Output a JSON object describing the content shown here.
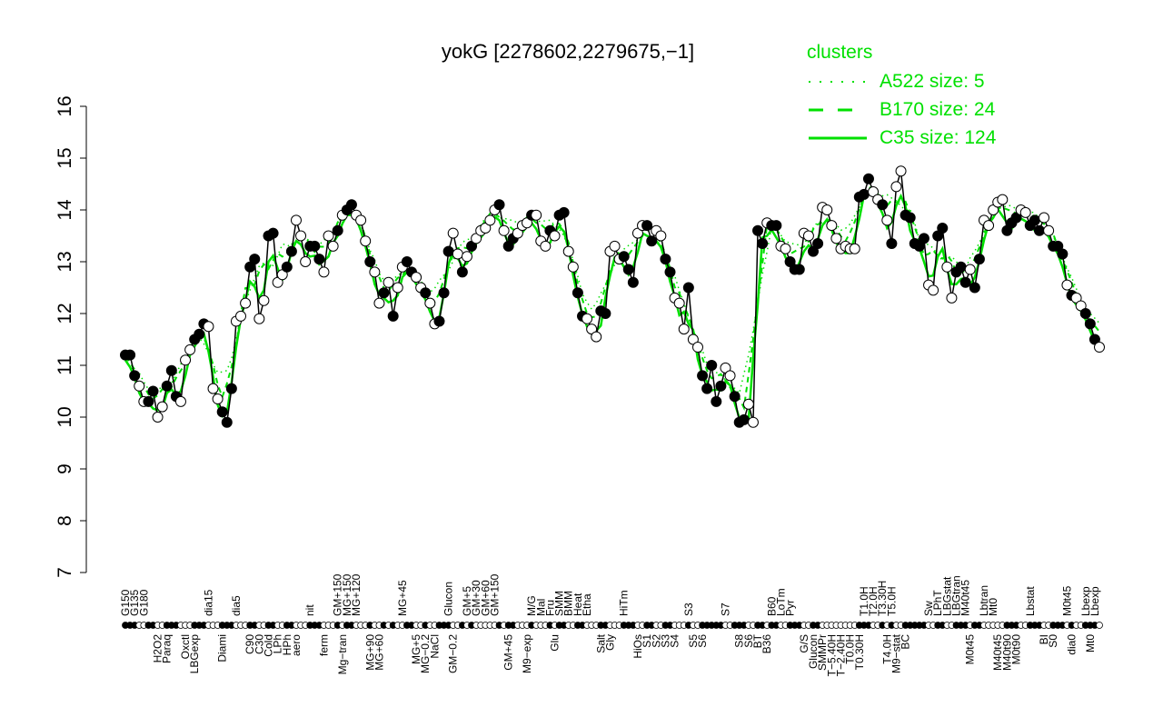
{
  "chart_data": {
    "type": "line",
    "title": "yokG [2278602,2279675,−1]",
    "xlabel": "",
    "ylabel": "",
    "ylim": [
      7,
      16
    ],
    "yticks": [
      7,
      8,
      9,
      10,
      11,
      12,
      13,
      14,
      15,
      16
    ],
    "legend": {
      "title": "clusters",
      "placement": "top-right",
      "entries": [
        {
          "label": "A522 size: 5",
          "style": "dotted"
        },
        {
          "label": "B170 size: 24",
          "style": "dashed"
        },
        {
          "label": "C35 size: 124",
          "style": "solid"
        }
      ]
    },
    "colors": {
      "points": "#000000",
      "clusters": "#00e000"
    },
    "points": [
      [
        11.2,
        1,
        "G150"
      ],
      [
        11.2,
        1,
        ""
      ],
      [
        10.8,
        1,
        "G135"
      ],
      [
        10.6,
        0,
        ""
      ],
      [
        10.3,
        0,
        "G180"
      ],
      [
        10.3,
        1,
        ""
      ],
      [
        10.5,
        1,
        ""
      ],
      [
        10.0,
        0,
        "H2O2"
      ],
      [
        10.2,
        0,
        ""
      ],
      [
        10.6,
        1,
        "Paraq"
      ],
      [
        10.9,
        1,
        ""
      ],
      [
        10.4,
        1,
        ""
      ],
      [
        10.3,
        0,
        ""
      ],
      [
        11.1,
        0,
        "Oxctl"
      ],
      [
        11.3,
        0,
        ""
      ],
      [
        11.5,
        1,
        "LBGexp"
      ],
      [
        11.6,
        1,
        ""
      ],
      [
        11.8,
        1,
        ""
      ],
      [
        11.75,
        0,
        "dia15"
      ],
      [
        10.55,
        0,
        ""
      ],
      [
        10.35,
        0,
        ""
      ],
      [
        10.1,
        1,
        "Diami"
      ],
      [
        9.9,
        1,
        ""
      ],
      [
        10.55,
        1,
        ""
      ],
      [
        11.85,
        0,
        "dia5"
      ],
      [
        11.95,
        0,
        ""
      ],
      [
        12.2,
        0,
        ""
      ],
      [
        12.9,
        1,
        "C90"
      ],
      [
        13.05,
        1,
        ""
      ],
      [
        11.9,
        0,
        "C30"
      ],
      [
        12.25,
        0,
        ""
      ],
      [
        13.5,
        1,
        "Cold"
      ],
      [
        13.55,
        1,
        ""
      ],
      [
        12.6,
        0,
        "LPh"
      ],
      [
        12.75,
        0,
        ""
      ],
      [
        12.9,
        1,
        "HPh"
      ],
      [
        13.2,
        1,
        ""
      ],
      [
        13.8,
        0,
        "aero"
      ],
      [
        13.5,
        0,
        ""
      ],
      [
        13.0,
        0,
        ""
      ],
      [
        13.3,
        1,
        "nit"
      ],
      [
        13.3,
        1,
        ""
      ],
      [
        13.05,
        1,
        ""
      ],
      [
        12.8,
        0,
        "ferm"
      ],
      [
        13.5,
        0,
        ""
      ],
      [
        13.3,
        0,
        ""
      ],
      [
        13.6,
        1,
        "GM+150"
      ],
      [
        13.9,
        0,
        "Mg−tran"
      ],
      [
        14.0,
        1,
        "MG+150"
      ],
      [
        14.1,
        1,
        ""
      ],
      [
        13.9,
        0,
        "MG+120"
      ],
      [
        13.8,
        0,
        ""
      ],
      [
        13.4,
        0,
        ""
      ],
      [
        13.0,
        1,
        "MG+90"
      ],
      [
        12.8,
        0,
        ""
      ],
      [
        12.2,
        0,
        "MG+60"
      ],
      [
        12.4,
        1,
        ""
      ],
      [
        12.6,
        0,
        ""
      ],
      [
        11.95,
        1,
        ""
      ],
      [
        12.5,
        0,
        ""
      ],
      [
        12.9,
        0,
        "MG+45"
      ],
      [
        13.0,
        1,
        ""
      ],
      [
        12.8,
        1,
        ""
      ],
      [
        12.7,
        0,
        "MG+5"
      ],
      [
        12.5,
        0,
        ""
      ],
      [
        12.4,
        1,
        "MG−0.2"
      ],
      [
        12.2,
        0,
        ""
      ],
      [
        11.8,
        0,
        "NaCl"
      ],
      [
        11.85,
        1,
        ""
      ],
      [
        12.4,
        1,
        ""
      ],
      [
        13.2,
        1,
        "Glucon"
      ],
      [
        13.55,
        0,
        "GM−0.2"
      ],
      [
        13.15,
        0,
        ""
      ],
      [
        12.8,
        1,
        ""
      ],
      [
        13.1,
        0,
        "GM+5"
      ],
      [
        13.3,
        1,
        ""
      ],
      [
        13.45,
        0,
        "GM+30"
      ],
      [
        13.6,
        0,
        ""
      ],
      [
        13.65,
        0,
        "GM+60"
      ],
      [
        13.8,
        0,
        ""
      ],
      [
        14.0,
        0,
        "GM+150"
      ],
      [
        14.1,
        1,
        ""
      ],
      [
        13.6,
        0,
        ""
      ],
      [
        13.3,
        1,
        "GM+45"
      ],
      [
        13.45,
        1,
        ""
      ],
      [
        13.55,
        0,
        ""
      ],
      [
        13.7,
        0,
        ""
      ],
      [
        13.75,
        0,
        "M9−exp"
      ],
      [
        13.9,
        1,
        "M/G"
      ],
      [
        13.9,
        0,
        ""
      ],
      [
        13.4,
        0,
        "Mal"
      ],
      [
        13.3,
        0,
        ""
      ],
      [
        13.6,
        1,
        "Fru"
      ],
      [
        13.5,
        0,
        "Glu"
      ],
      [
        13.9,
        1,
        "SMM"
      ],
      [
        13.95,
        1,
        ""
      ],
      [
        13.2,
        0,
        "BMM"
      ],
      [
        12.9,
        0,
        ""
      ],
      [
        12.4,
        1,
        "Heat"
      ],
      [
        11.95,
        1,
        ""
      ],
      [
        11.9,
        0,
        "Etha"
      ],
      [
        11.7,
        0,
        ""
      ],
      [
        11.55,
        0,
        ""
      ],
      [
        12.05,
        1,
        "Salt"
      ],
      [
        12.0,
        1,
        ""
      ],
      [
        13.2,
        0,
        "Gly"
      ],
      [
        13.3,
        0,
        ""
      ],
      [
        13.05,
        0,
        ""
      ],
      [
        13.1,
        1,
        "HiTm"
      ],
      [
        12.85,
        1,
        ""
      ],
      [
        12.6,
        1,
        ""
      ],
      [
        13.55,
        0,
        "HiOs"
      ],
      [
        13.7,
        0,
        ""
      ],
      [
        13.7,
        1,
        "S1"
      ],
      [
        13.4,
        1,
        ""
      ],
      [
        13.6,
        0,
        "S2"
      ],
      [
        13.5,
        0,
        ""
      ],
      [
        13.05,
        1,
        "S3"
      ],
      [
        12.8,
        1,
        ""
      ],
      [
        12.3,
        0,
        "S4"
      ],
      [
        12.2,
        0,
        ""
      ],
      [
        11.7,
        0,
        ""
      ],
      [
        12.5,
        1,
        "S3"
      ],
      [
        11.5,
        0,
        "S5"
      ],
      [
        11.35,
        0,
        ""
      ],
      [
        10.8,
        1,
        "S6"
      ],
      [
        10.55,
        1,
        ""
      ],
      [
        11.0,
        1,
        ""
      ],
      [
        10.3,
        1,
        ""
      ],
      [
        10.6,
        1,
        ""
      ],
      [
        10.95,
        0,
        "S7"
      ],
      [
        10.8,
        0,
        ""
      ],
      [
        10.4,
        1,
        ""
      ],
      [
        9.9,
        1,
        "S8"
      ],
      [
        9.95,
        1,
        ""
      ],
      [
        10.25,
        0,
        "S6"
      ],
      [
        9.9,
        0,
        ""
      ],
      [
        13.6,
        1,
        "BT"
      ],
      [
        13.35,
        1,
        ""
      ],
      [
        13.75,
        0,
        "B36"
      ],
      [
        13.7,
        1,
        "B60"
      ],
      [
        13.7,
        1,
        ""
      ],
      [
        13.3,
        0,
        "LoTm"
      ],
      [
        13.25,
        0,
        ""
      ],
      [
        13.0,
        1,
        "Pyr"
      ],
      [
        12.85,
        1,
        ""
      ],
      [
        12.85,
        1,
        ""
      ],
      [
        13.55,
        0,
        "G/S"
      ],
      [
        13.5,
        0,
        ""
      ],
      [
        13.2,
        1,
        "Glucon"
      ],
      [
        13.35,
        1,
        ""
      ],
      [
        14.05,
        0,
        "SMMPr"
      ],
      [
        14.0,
        0,
        ""
      ],
      [
        13.7,
        0,
        "T−5.40H"
      ],
      [
        13.45,
        0,
        ""
      ],
      [
        13.25,
        0,
        "T−2.40H"
      ],
      [
        13.3,
        0,
        ""
      ],
      [
        13.25,
        0,
        "T0.0H"
      ],
      [
        13.25,
        0,
        ""
      ],
      [
        14.25,
        1,
        "T0.30H"
      ],
      [
        14.3,
        1,
        "T1.0H"
      ],
      [
        14.6,
        1,
        ""
      ],
      [
        14.35,
        0,
        "T2.0H"
      ],
      [
        14.2,
        0,
        ""
      ],
      [
        14.1,
        1,
        "T3.30H"
      ],
      [
        13.8,
        0,
        "T4.0H"
      ],
      [
        13.35,
        1,
        "T5.0H"
      ],
      [
        14.45,
        0,
        "M9−stat"
      ],
      [
        14.75,
        0,
        ""
      ],
      [
        13.9,
        1,
        "BC"
      ],
      [
        13.85,
        1,
        ""
      ],
      [
        13.35,
        1,
        ""
      ],
      [
        13.3,
        1,
        ""
      ],
      [
        13.45,
        1,
        ""
      ],
      [
        12.55,
        0,
        "Sw"
      ],
      [
        12.45,
        0,
        ""
      ],
      [
        13.5,
        1,
        "LPhT"
      ],
      [
        13.65,
        1,
        ""
      ],
      [
        12.9,
        0,
        "LBGstat"
      ],
      [
        12.3,
        0,
        ""
      ],
      [
        12.8,
        1,
        "LBGtran"
      ],
      [
        12.9,
        1,
        ""
      ],
      [
        12.6,
        1,
        "M40t45"
      ],
      [
        12.85,
        0,
        "M0t45"
      ],
      [
        12.5,
        1,
        ""
      ],
      [
        13.05,
        1,
        ""
      ],
      [
        13.8,
        0,
        "Lbtran"
      ],
      [
        13.7,
        0,
        ""
      ],
      [
        14.0,
        0,
        "Mt0"
      ],
      [
        14.15,
        0,
        "M40t45"
      ],
      [
        14.2,
        0,
        ""
      ],
      [
        13.6,
        1,
        "M40t90"
      ],
      [
        13.75,
        1,
        ""
      ],
      [
        13.85,
        1,
        "M0t90"
      ],
      [
        14.0,
        0,
        ""
      ],
      [
        13.95,
        0,
        ""
      ],
      [
        13.7,
        1,
        "Lbstat"
      ],
      [
        13.8,
        1,
        ""
      ],
      [
        13.6,
        1,
        ""
      ],
      [
        13.85,
        0,
        "BI"
      ],
      [
        13.6,
        0,
        ""
      ],
      [
        13.3,
        1,
        "S0"
      ],
      [
        13.3,
        1,
        ""
      ],
      [
        13.15,
        1,
        ""
      ],
      [
        12.55,
        0,
        "M0t45"
      ],
      [
        12.35,
        1,
        "dia0"
      ],
      [
        12.3,
        0,
        ""
      ],
      [
        12.15,
        0,
        ""
      ],
      [
        12.0,
        1,
        "Lbexp"
      ],
      [
        11.8,
        1,
        "Mt0"
      ],
      [
        11.5,
        1,
        "Lbexp"
      ],
      [
        11.35,
        0,
        ""
      ]
    ]
  }
}
